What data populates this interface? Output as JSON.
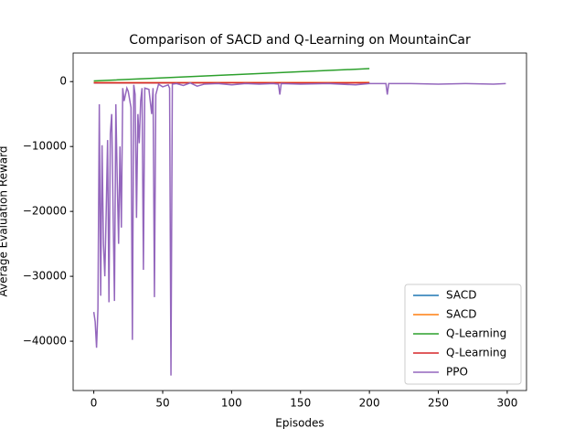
{
  "chart_data": {
    "type": "line",
    "title": "Comparison of SACD and Q-Learning on MountainCar",
    "x_label": "Episodes",
    "y_label": "Average Evaluation Reward",
    "xlim": [
      -15,
      314
    ],
    "ylim": [
      -47600,
      4400
    ],
    "xticks": [
      0,
      50,
      100,
      150,
      200,
      250,
      300
    ],
    "yticks": [
      {
        "value": -40000,
        "label": "−40000"
      },
      {
        "value": -30000,
        "label": "−30000"
      },
      {
        "value": -20000,
        "label": "−20000"
      },
      {
        "value": -10000,
        "label": "−10000"
      },
      0
    ],
    "grid": false,
    "legend": "lower right",
    "series": [
      {
        "name": "SACD",
        "color": "#1f77b4",
        "x": [
          0,
          50,
          100,
          150,
          200
        ],
        "values": [
          -200,
          -180,
          -170,
          -160,
          -150
        ]
      },
      {
        "name": "SACD",
        "color": "#ff7f0e",
        "x": [
          0,
          50,
          100,
          150,
          200
        ],
        "values": [
          -150,
          -160,
          -140,
          -150,
          -130
        ]
      },
      {
        "name": "Q-Learning",
        "color": "#2ca02c",
        "x": [
          0,
          50,
          100,
          150,
          200
        ],
        "values": [
          100,
          575,
          1050,
          1525,
          2000
        ]
      },
      {
        "name": "Q-Learning",
        "color": "#d62728",
        "x": [
          0,
          50,
          100,
          150,
          200
        ],
        "values": [
          -200,
          -190,
          -180,
          -190,
          -200
        ]
      },
      {
        "name": "PPO",
        "color": "#9467bd",
        "x": [
          0,
          1,
          2,
          3,
          4,
          5,
          6,
          7,
          8,
          9,
          10,
          11,
          12,
          13,
          14,
          15,
          16,
          17,
          18,
          19,
          20,
          21,
          22,
          24,
          25,
          27,
          28,
          29,
          30,
          31,
          32,
          33,
          34,
          35,
          36,
          37,
          40,
          42,
          43,
          44,
          45,
          47,
          50,
          54,
          55,
          56,
          57,
          60,
          65,
          70,
          75,
          80,
          90,
          100,
          110,
          120,
          130,
          134,
          135,
          136,
          150,
          170,
          190,
          200,
          212,
          213,
          214,
          230,
          250,
          270,
          290,
          299
        ],
        "values": [
          -35500,
          -37000,
          -41000,
          -35000,
          -3500,
          -33000,
          -9800,
          -25000,
          -30000,
          -20000,
          -9000,
          -34000,
          -8000,
          -5000,
          -20000,
          -33800,
          -3500,
          -15000,
          -25000,
          -10000,
          -22500,
          -1000,
          -3000,
          -1000,
          -1500,
          -4000,
          -39800,
          -500,
          -2000,
          -21000,
          -5000,
          -9500,
          -3000,
          -1000,
          -29000,
          -1000,
          -1200,
          -5000,
          -1000,
          -33200,
          -2000,
          -400,
          -800,
          -500,
          -1000,
          -45300,
          -400,
          -300,
          -600,
          -200,
          -700,
          -400,
          -300,
          -500,
          -300,
          -400,
          -300,
          -400,
          -2000,
          -300,
          -400,
          -300,
          -500,
          -300,
          -300,
          -2000,
          -300,
          -300,
          -400,
          -300,
          -400,
          -300
        ]
      }
    ]
  }
}
